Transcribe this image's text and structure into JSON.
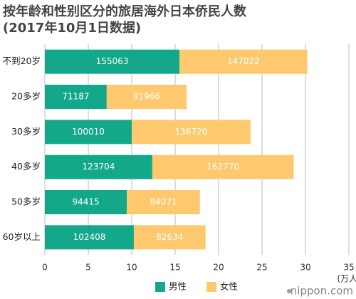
{
  "chart_data": {
    "type": "stacked-barh",
    "title": "按年龄和性别区分的旅居海外日本侨民人数",
    "subtitle": "(2017年10月1日数据)",
    "x_unit_label": "(万人)",
    "watermark": "nippon.com",
    "categories": [
      "不到20岁",
      "20多岁",
      "30多岁",
      "40多岁",
      "50多岁",
      "60岁以上"
    ],
    "series": [
      {
        "name": "男性",
        "color": "#14a88a",
        "values": [
          15.5063,
          7.1187,
          10.001,
          12.3704,
          9.4415,
          10.2408
        ],
        "value_labels": [
          "155063",
          "71187",
          "100010",
          "123704",
          "94415",
          "102408"
        ]
      },
      {
        "name": "女性",
        "color": "#fec96e",
        "values": [
          14.7022,
          9.1966,
          13.672,
          16.277,
          8.4071,
          8.2634
        ],
        "value_labels": [
          "147022",
          "91966",
          "136720",
          "162770",
          "84071",
          "82634"
        ]
      }
    ],
    "xlim": [
      0,
      35
    ],
    "xticks": [
      0,
      5,
      10,
      15,
      20,
      25,
      30,
      35
    ],
    "grid": true
  }
}
